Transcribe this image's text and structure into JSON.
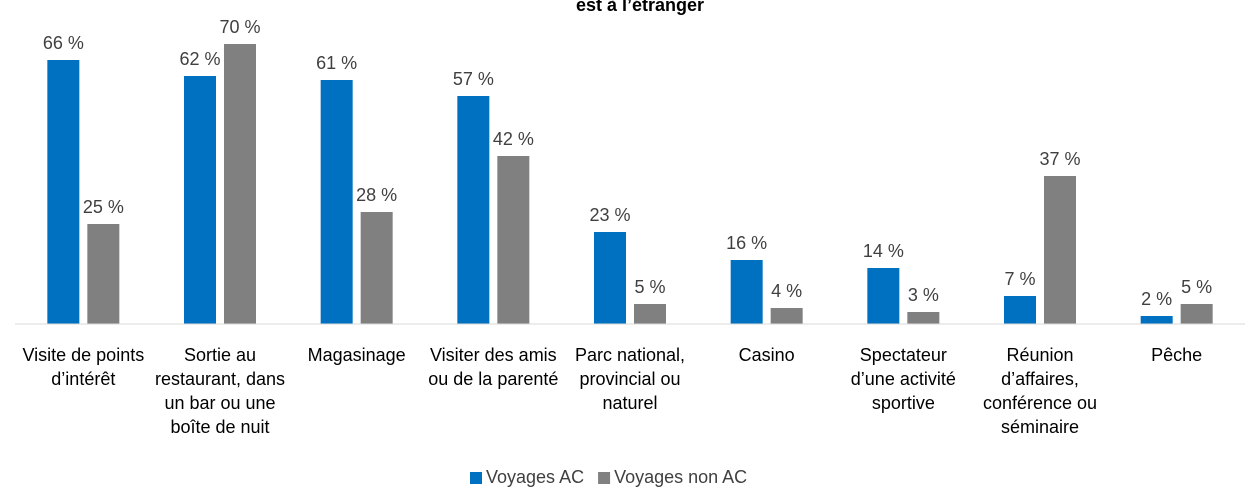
{
  "chart_data": {
    "type": "bar",
    "title": "est à l’étranger",
    "categories": [
      "Visite de points d’intérêt",
      "Sortie au restaurant, dans un bar ou une boîte de nuit",
      "Magasinage",
      "Visiter des amis ou de la parenté",
      "Parc national, provincial ou naturel",
      "Casino",
      "Spectateur d’une activité sportive",
      "Réunion d’affaires, conférence ou séminaire",
      "Pêche"
    ],
    "series": [
      {
        "name": "Voyages AC",
        "color": "#0070c0",
        "values": [
          66,
          62,
          61,
          57,
          23,
          16,
          14,
          7,
          2
        ],
        "value_labels": [
          "66 %",
          "62 %",
          "61 %",
          "57 %",
          "23 %",
          "16 %",
          "14 %",
          "7 %",
          "2 %"
        ]
      },
      {
        "name": "Voyages non AC",
        "color": "#808080",
        "values": [
          25,
          70,
          28,
          42,
          5,
          4,
          3,
          37,
          5
        ],
        "value_labels": [
          "25 %",
          "70 %",
          "28 %",
          "42 %",
          "5 %",
          "4 %",
          "3 %",
          "37 %",
          "5 %"
        ]
      }
    ],
    "legend": "bottom"
  }
}
